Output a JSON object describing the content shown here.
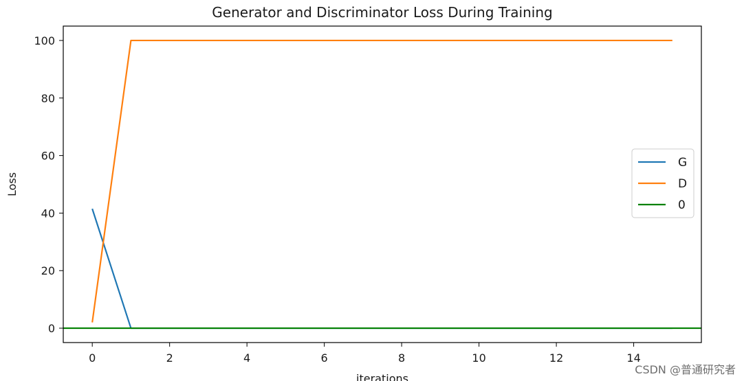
{
  "chart_data": {
    "type": "line",
    "title": "Generator and Discriminator Loss During Training",
    "xlabel": "iterations",
    "ylabel": "Loss",
    "xlim": [
      -0.75,
      15.75
    ],
    "ylim": [
      -5,
      105
    ],
    "xticks": [
      0,
      2,
      4,
      6,
      8,
      10,
      12,
      14
    ],
    "yticks": [
      0,
      20,
      40,
      60,
      80,
      100
    ],
    "grid": false,
    "legend_position": "center-right",
    "series": [
      {
        "name": "G",
        "color": "#1f77b4",
        "x": [
          0,
          1,
          2,
          3,
          4,
          5,
          6,
          7,
          8,
          9,
          10,
          11,
          12,
          13,
          14,
          15
        ],
        "values": [
          41.5,
          0,
          0,
          0,
          0,
          0,
          0,
          0,
          0,
          0,
          0,
          0,
          0,
          0,
          0,
          0
        ]
      },
      {
        "name": "D",
        "color": "#ff7f0e",
        "x": [
          0,
          1,
          2,
          3,
          4,
          5,
          6,
          7,
          8,
          9,
          10,
          11,
          12,
          13,
          14,
          15
        ],
        "values": [
          2,
          100,
          100,
          100,
          100,
          100,
          100,
          100,
          100,
          100,
          100,
          100,
          100,
          100,
          100,
          100
        ]
      },
      {
        "name": "0",
        "color": "#008000",
        "kind": "horizontal-line",
        "y": 0
      }
    ]
  },
  "watermark": "CSDN @普通研究者"
}
